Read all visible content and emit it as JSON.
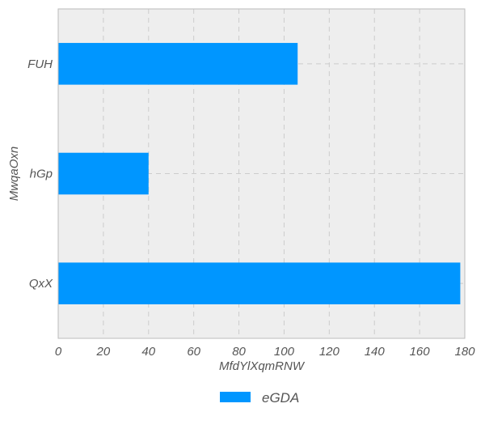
{
  "chart_data": {
    "type": "bar",
    "orientation": "horizontal",
    "title": "",
    "xlabel": "MfdYlXqmRNW",
    "ylabel": "MwqaOxn",
    "categories": [
      "FUH",
      "hGp",
      "QxX"
    ],
    "series": [
      {
        "name": "eGDA",
        "values": [
          106,
          40,
          178
        ],
        "color": "#0096ff"
      }
    ],
    "xlim": [
      0,
      180
    ],
    "xticks": [
      0,
      20,
      40,
      60,
      80,
      100,
      120,
      140,
      160,
      180
    ],
    "grid": true,
    "legend_position": "bottom-center",
    "colors": {
      "plot_background": "#eeeeee",
      "grid": "#cccccc",
      "axis_border": "#bbbbbb",
      "text": "#555555"
    }
  }
}
